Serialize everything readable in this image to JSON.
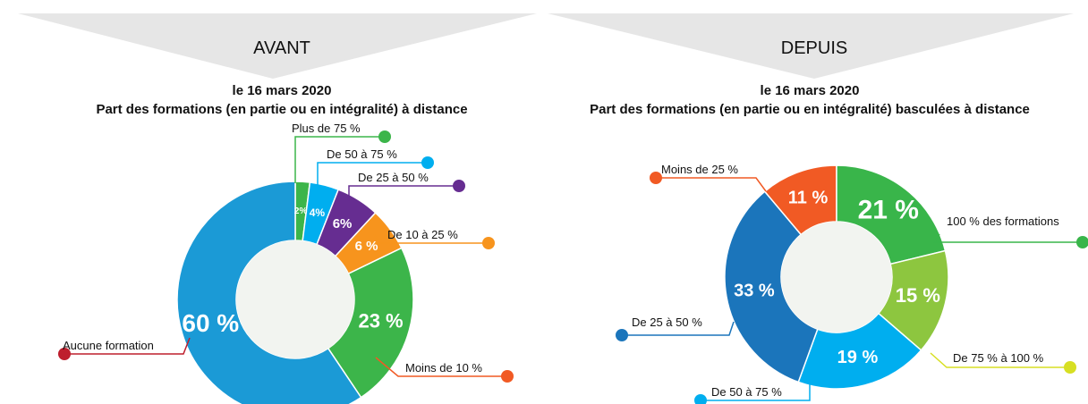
{
  "chart_data": [
    {
      "type": "pie",
      "donut": true,
      "header": "AVANT",
      "subtitle": "le 16 mars 2020",
      "title": "Part des formations (en partie ou en intégralité) à distance",
      "categories": [
        "Plus de 75 %",
        "De 50 à 75 %",
        "De 25 à 50 %",
        "De 10 à 25 %",
        "Moins de 10 %",
        "Aucune formation"
      ],
      "values": [
        2,
        4,
        6,
        6,
        23,
        60
      ],
      "value_labels": [
        "2%",
        "4%",
        "6%",
        "6 %",
        "23 %",
        "60 %"
      ],
      "colors": [
        "#3cb54a",
        "#00aeef",
        "#662d91",
        "#f7941d",
        "#3cb54a",
        "#1b9ad6"
      ],
      "label_colors": [
        "#3cb54a",
        "#00aeef",
        "#662d91",
        "#f7941d",
        "#f15a24",
        "#be1e2d"
      ]
    },
    {
      "type": "pie",
      "donut": true,
      "header": "DEPUIS",
      "subtitle": "le 16 mars 2020",
      "title": "Part des formations (en partie ou en intégralité) basculées à distance",
      "categories": [
        "Moins de 25 %",
        "100 % des formations",
        "De 75 % à 100 %",
        "De 50 à 75 %",
        "De 25 à 50 %"
      ],
      "values": [
        11,
        21,
        15,
        19,
        33
      ],
      "value_labels": [
        "11 %",
        "21 %",
        "15 %",
        "19 %",
        "33 %"
      ],
      "colors": [
        "#f15a24",
        "#39b54a",
        "#8dc63f",
        "#00aeef",
        "#1b75bb"
      ],
      "label_colors": [
        "#f15a24",
        "#39b54a",
        "#d7df23",
        "#00aeef",
        "#1b75bb"
      ]
    }
  ]
}
